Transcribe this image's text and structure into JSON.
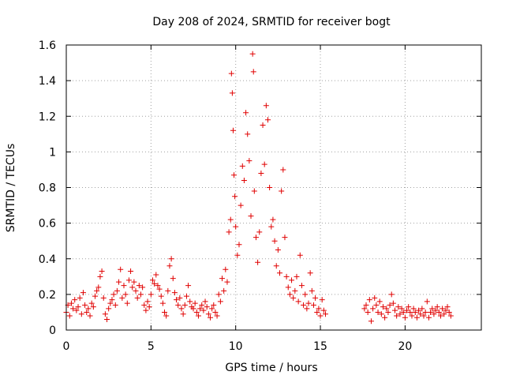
{
  "chart_data": {
    "type": "scatter",
    "title": "Day 208 of 2024, SRMTID for receiver bogt",
    "xlabel": "GPS time / hours",
    "ylabel": "SRMTID / TECUs",
    "xlim": [
      0,
      24.5
    ],
    "ylim": [
      0,
      1.6
    ],
    "xticks": [
      0,
      5,
      10,
      15,
      20
    ],
    "xtick_labels": [
      "0",
      "5",
      "10",
      "15",
      "20"
    ],
    "yticks": [
      0,
      0.2,
      0.4,
      0.6,
      0.8,
      1.0,
      1.2,
      1.4,
      1.6
    ],
    "ytick_labels": [
      "0",
      "0.2",
      "0.4",
      "0.6",
      "0.8",
      "1",
      "1.2",
      "1.4",
      "1.6"
    ],
    "grid": true,
    "marker": "plus",
    "color": "#e00000",
    "series": [
      {
        "name": "SRMTID",
        "points": [
          [
            0.0,
            0.1
          ],
          [
            0.1,
            0.14
          ],
          [
            0.2,
            0.08
          ],
          [
            0.3,
            0.15
          ],
          [
            0.4,
            0.12
          ],
          [
            0.5,
            0.17
          ],
          [
            0.6,
            0.11
          ],
          [
            0.7,
            0.13
          ],
          [
            0.8,
            0.18
          ],
          [
            0.9,
            0.09
          ],
          [
            1.0,
            0.21
          ],
          [
            1.1,
            0.14
          ],
          [
            1.2,
            0.1
          ],
          [
            1.3,
            0.12
          ],
          [
            1.4,
            0.08
          ],
          [
            1.5,
            0.15
          ],
          [
            1.6,
            0.13
          ],
          [
            1.7,
            0.19
          ],
          [
            1.8,
            0.22
          ],
          [
            1.9,
            0.24
          ],
          [
            2.0,
            0.3
          ],
          [
            2.1,
            0.33
          ],
          [
            2.2,
            0.18
          ],
          [
            2.3,
            0.09
          ],
          [
            2.4,
            0.06
          ],
          [
            2.5,
            0.12
          ],
          [
            2.6,
            0.15
          ],
          [
            2.7,
            0.17
          ],
          [
            2.8,
            0.2
          ],
          [
            2.9,
            0.14
          ],
          [
            3.0,
            0.22
          ],
          [
            3.1,
            0.27
          ],
          [
            3.2,
            0.34
          ],
          [
            3.3,
            0.18
          ],
          [
            3.4,
            0.25
          ],
          [
            3.5,
            0.2
          ],
          [
            3.6,
            0.15
          ],
          [
            3.7,
            0.28
          ],
          [
            3.8,
            0.33
          ],
          [
            3.9,
            0.24
          ],
          [
            4.0,
            0.27
          ],
          [
            4.1,
            0.22
          ],
          [
            4.2,
            0.18
          ],
          [
            4.3,
            0.25
          ],
          [
            4.4,
            0.2
          ],
          [
            4.5,
            0.24
          ],
          [
            4.6,
            0.14
          ],
          [
            4.7,
            0.11
          ],
          [
            4.8,
            0.16
          ],
          [
            4.9,
            0.13
          ],
          [
            5.0,
            0.2
          ],
          [
            5.1,
            0.28
          ],
          [
            5.2,
            0.26
          ],
          [
            5.3,
            0.31
          ],
          [
            5.4,
            0.25
          ],
          [
            5.5,
            0.23
          ],
          [
            5.6,
            0.19
          ],
          [
            5.7,
            0.15
          ],
          [
            5.8,
            0.1
          ],
          [
            5.9,
            0.08
          ],
          [
            6.0,
            0.22
          ],
          [
            6.1,
            0.36
          ],
          [
            6.2,
            0.4
          ],
          [
            6.3,
            0.29
          ],
          [
            6.4,
            0.21
          ],
          [
            6.5,
            0.17
          ],
          [
            6.6,
            0.14
          ],
          [
            6.7,
            0.18
          ],
          [
            6.8,
            0.12
          ],
          [
            6.9,
            0.09
          ],
          [
            7.0,
            0.14
          ],
          [
            7.1,
            0.19
          ],
          [
            7.2,
            0.25
          ],
          [
            7.3,
            0.16
          ],
          [
            7.4,
            0.13
          ],
          [
            7.5,
            0.12
          ],
          [
            7.6,
            0.15
          ],
          [
            7.7,
            0.1
          ],
          [
            7.8,
            0.08
          ],
          [
            7.9,
            0.12
          ],
          [
            8.0,
            0.14
          ],
          [
            8.1,
            0.11
          ],
          [
            8.2,
            0.16
          ],
          [
            8.3,
            0.13
          ],
          [
            8.4,
            0.09
          ],
          [
            8.5,
            0.07
          ],
          [
            8.6,
            0.12
          ],
          [
            8.7,
            0.14
          ],
          [
            8.8,
            0.1
          ],
          [
            8.9,
            0.08
          ],
          [
            9.0,
            0.2
          ],
          [
            9.1,
            0.16
          ],
          [
            9.2,
            0.29
          ],
          [
            9.3,
            0.22
          ],
          [
            9.4,
            0.34
          ],
          [
            9.5,
            0.27
          ],
          [
            9.6,
            0.55
          ],
          [
            9.7,
            0.62
          ],
          [
            9.75,
            1.44
          ],
          [
            9.8,
            1.33
          ],
          [
            9.85,
            1.12
          ],
          [
            9.9,
            0.87
          ],
          [
            9.95,
            0.75
          ],
          [
            10.0,
            0.58
          ],
          [
            10.1,
            0.42
          ],
          [
            10.2,
            0.48
          ],
          [
            10.3,
            0.7
          ],
          [
            10.4,
            0.92
          ],
          [
            10.5,
            0.84
          ],
          [
            10.6,
            1.22
          ],
          [
            10.7,
            1.1
          ],
          [
            10.8,
            0.95
          ],
          [
            10.9,
            0.64
          ],
          [
            11.0,
            1.55
          ],
          [
            11.05,
            1.45
          ],
          [
            11.1,
            0.78
          ],
          [
            11.2,
            0.52
          ],
          [
            11.3,
            0.38
          ],
          [
            11.4,
            0.55
          ],
          [
            11.5,
            0.88
          ],
          [
            11.6,
            1.15
          ],
          [
            11.7,
            0.93
          ],
          [
            11.8,
            1.26
          ],
          [
            11.9,
            1.18
          ],
          [
            12.0,
            0.8
          ],
          [
            12.1,
            0.58
          ],
          [
            12.2,
            0.62
          ],
          [
            12.3,
            0.5
          ],
          [
            12.4,
            0.36
          ],
          [
            12.5,
            0.45
          ],
          [
            12.6,
            0.32
          ],
          [
            12.7,
            0.78
          ],
          [
            12.8,
            0.9
          ],
          [
            12.9,
            0.52
          ],
          [
            13.0,
            0.3
          ],
          [
            13.1,
            0.24
          ],
          [
            13.2,
            0.2
          ],
          [
            13.3,
            0.28
          ],
          [
            13.4,
            0.18
          ],
          [
            13.5,
            0.22
          ],
          [
            13.6,
            0.3
          ],
          [
            13.7,
            0.16
          ],
          [
            13.8,
            0.42
          ],
          [
            13.9,
            0.25
          ],
          [
            14.0,
            0.14
          ],
          [
            14.1,
            0.2
          ],
          [
            14.2,
            0.12
          ],
          [
            14.3,
            0.15
          ],
          [
            14.4,
            0.32
          ],
          [
            14.5,
            0.22
          ],
          [
            14.6,
            0.14
          ],
          [
            14.7,
            0.18
          ],
          [
            14.8,
            0.1
          ],
          [
            14.9,
            0.12
          ],
          [
            15.0,
            0.08
          ],
          [
            15.1,
            0.17
          ],
          [
            15.2,
            0.11
          ],
          [
            15.3,
            0.09
          ],
          [
            17.6,
            0.12
          ],
          [
            17.7,
            0.14
          ],
          [
            17.8,
            0.1
          ],
          [
            17.9,
            0.17
          ],
          [
            18.0,
            0.05
          ],
          [
            18.1,
            0.12
          ],
          [
            18.2,
            0.18
          ],
          [
            18.3,
            0.14
          ],
          [
            18.4,
            0.1
          ],
          [
            18.5,
            0.16
          ],
          [
            18.6,
            0.09
          ],
          [
            18.7,
            0.13
          ],
          [
            18.8,
            0.07
          ],
          [
            18.9,
            0.12
          ],
          [
            19.0,
            0.1
          ],
          [
            19.1,
            0.14
          ],
          [
            19.2,
            0.2
          ],
          [
            19.3,
            0.15
          ],
          [
            19.4,
            0.11
          ],
          [
            19.5,
            0.08
          ],
          [
            19.6,
            0.13
          ],
          [
            19.7,
            0.09
          ],
          [
            19.8,
            0.12
          ],
          [
            19.9,
            0.1
          ],
          [
            20.0,
            0.07
          ],
          [
            20.1,
            0.11
          ],
          [
            20.2,
            0.13
          ],
          [
            20.3,
            0.1
          ],
          [
            20.4,
            0.08
          ],
          [
            20.5,
            0.12
          ],
          [
            20.6,
            0.1
          ],
          [
            20.7,
            0.07
          ],
          [
            20.8,
            0.11
          ],
          [
            20.9,
            0.09
          ],
          [
            21.0,
            0.12
          ],
          [
            21.1,
            0.08
          ],
          [
            21.2,
            0.1
          ],
          [
            21.3,
            0.16
          ],
          [
            21.4,
            0.07
          ],
          [
            21.5,
            0.1
          ],
          [
            21.6,
            0.12
          ],
          [
            21.7,
            0.09
          ],
          [
            21.8,
            0.11
          ],
          [
            21.9,
            0.13
          ],
          [
            22.0,
            0.1
          ],
          [
            22.1,
            0.08
          ],
          [
            22.2,
            0.12
          ],
          [
            22.3,
            0.09
          ],
          [
            22.4,
            0.11
          ],
          [
            22.5,
            0.13
          ],
          [
            22.6,
            0.1
          ],
          [
            22.7,
            0.08
          ]
        ]
      }
    ]
  }
}
